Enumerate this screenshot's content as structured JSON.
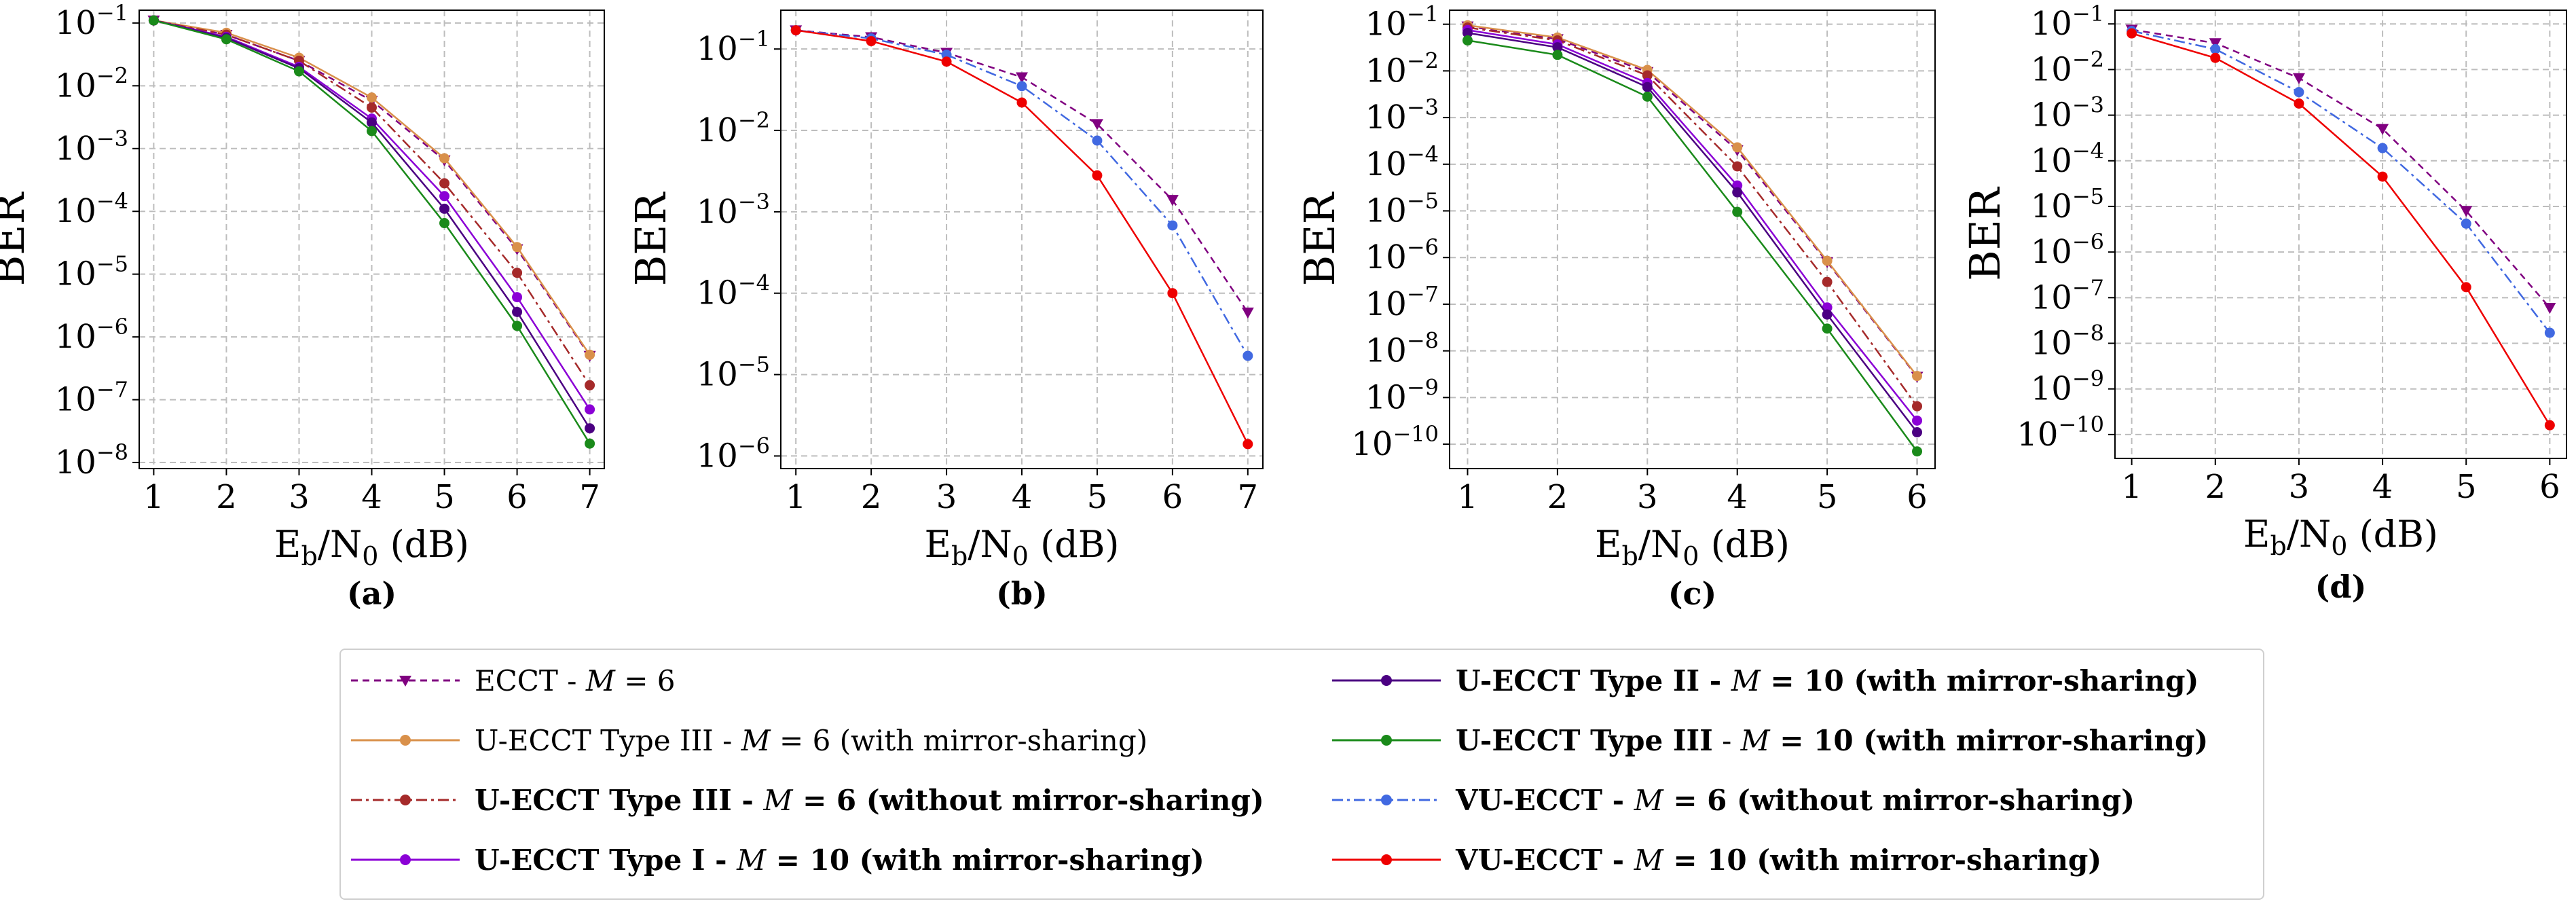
{
  "chart_data": [
    {
      "panel": "(a)",
      "type": "line",
      "xlabel": "E_b/N_0 (dB)",
      "ylabel": "BER",
      "yscale": "log",
      "x": [
        1,
        2,
        3,
        4,
        5,
        6,
        7
      ],
      "xlim": [
        0.8,
        7.2
      ],
      "ylim": [
        8e-09,
        0.16
      ],
      "yticks": [
        -8,
        -7,
        -6,
        -5,
        -4,
        -3,
        -2,
        -1
      ],
      "grid": true,
      "series": [
        {
          "key": "ecct6",
          "values": [
            0.11,
            0.065,
            0.025,
            0.0058,
            0.00065,
            2.5e-05,
            5e-07
          ]
        },
        {
          "key": "t3m6s",
          "values": [
            0.11,
            0.07,
            0.028,
            0.0065,
            0.0007,
            2.7e-05,
            5.2e-07
          ]
        },
        {
          "key": "t3m6n",
          "values": [
            0.11,
            0.065,
            0.025,
            0.0045,
            0.00028,
            1.05e-05,
            1.7e-07
          ]
        },
        {
          "key": "t1m10",
          "values": [
            0.11,
            0.06,
            0.02,
            0.003,
            0.000175,
            4.3e-06,
            7e-08
          ]
        },
        {
          "key": "t2m10",
          "values": [
            0.11,
            0.058,
            0.019,
            0.0026,
            0.00011,
            2.5e-06,
            3.5e-08
          ]
        },
        {
          "key": "t3m10",
          "values": [
            0.11,
            0.055,
            0.017,
            0.0019,
            6.5e-05,
            1.5e-06,
            2e-08
          ]
        }
      ]
    },
    {
      "panel": "(b)",
      "type": "line",
      "xlabel": "E_b/N_0 (dB)",
      "ylabel": "BER",
      "yscale": "log",
      "x": [
        1,
        2,
        3,
        4,
        5,
        6,
        7
      ],
      "xlim": [
        0.8,
        7.2
      ],
      "ylim": [
        7e-07,
        0.3
      ],
      "yticks": [
        -6,
        -5,
        -4,
        -3,
        -2,
        -1
      ],
      "grid": true,
      "series": [
        {
          "key": "ecct6",
          "values": [
            0.17,
            0.14,
            0.09,
            0.045,
            0.012,
            0.0014,
            5.8e-05
          ]
        },
        {
          "key": "vu6",
          "values": [
            0.17,
            0.135,
            0.085,
            0.035,
            0.0075,
            0.00068,
            1.7e-05
          ]
        },
        {
          "key": "vu10",
          "values": [
            0.17,
            0.125,
            0.07,
            0.022,
            0.0028,
            0.0001,
            1.4e-06
          ]
        }
      ]
    },
    {
      "panel": "(c)",
      "type": "line",
      "xlabel": "E_b/N_0 (dB)",
      "ylabel": "BER",
      "yscale": "log",
      "x": [
        1,
        2,
        3,
        4,
        5,
        6
      ],
      "xlim": [
        0.8,
        6.2
      ],
      "ylim": [
        3e-11,
        0.2
      ],
      "yticks": [
        -10,
        -9,
        -8,
        -7,
        -6,
        -5,
        -4,
        -3,
        -2,
        -1
      ],
      "grid": true,
      "series": [
        {
          "key": "ecct6",
          "values": [
            0.09,
            0.048,
            0.0095,
            0.0002,
            8e-07,
            2.8e-09
          ]
        },
        {
          "key": "t3m6s",
          "values": [
            0.095,
            0.052,
            0.0105,
            0.00023,
            8.5e-07,
            2.9e-09
          ]
        },
        {
          "key": "t3m6n",
          "values": [
            0.085,
            0.045,
            0.008,
            9e-05,
            3e-07,
            6.5e-10
          ]
        },
        {
          "key": "t1m10",
          "values": [
            0.075,
            0.037,
            0.0055,
            3.5e-05,
            8.5e-08,
            3.2e-10
          ]
        },
        {
          "key": "t2m10",
          "values": [
            0.065,
            0.032,
            0.0045,
            2.5e-05,
            6e-08,
            1.8e-10
          ]
        },
        {
          "key": "t3m10",
          "values": [
            0.045,
            0.022,
            0.0028,
            9.5e-06,
            3e-08,
            7e-11
          ]
        }
      ]
    },
    {
      "panel": "(d)",
      "type": "line",
      "xlabel": "E_b/N_0 (dB)",
      "ylabel": "BER",
      "yscale": "log",
      "x": [
        1,
        2,
        3,
        4,
        5,
        6
      ],
      "xlim": [
        0.8,
        6.2
      ],
      "ylim": [
        3e-11,
        0.2
      ],
      "yticks": [
        -10,
        -9,
        -8,
        -7,
        -6,
        -5,
        -4,
        -3,
        -2,
        -1
      ],
      "grid": true,
      "series": [
        {
          "key": "ecct6",
          "values": [
            0.075,
            0.038,
            0.0065,
            0.0005,
            8e-06,
            6e-08
          ]
        },
        {
          "key": "vu6",
          "values": [
            0.07,
            0.028,
            0.0032,
            0.00019,
            4.2e-06,
            1.7e-08
          ]
        },
        {
          "key": "vu10",
          "values": [
            0.062,
            0.018,
            0.0018,
            4.5e-05,
            1.7e-07,
            1.6e-10
          ]
        }
      ]
    }
  ],
  "panel_labels": [
    "(a)",
    "(b)",
    "(c)",
    "(d)"
  ],
  "axis_text": {
    "ylabel": "BER",
    "xlabel_main": "E",
    "xlabel_sub1": "b",
    "xlabel_mid": "/N",
    "xlabel_sub2": "0",
    "xlabel_unit": " (dB)"
  },
  "styles": {
    "ecct6": {
      "color": "#800080",
      "dash": "10,7",
      "marker": "tri-down"
    },
    "t3m6s": {
      "color": "#d9904a",
      "dash": "",
      "marker": "circle"
    },
    "t3m6n": {
      "color": "#a52a2a",
      "dash": "16,6,4,6",
      "marker": "circle"
    },
    "t1m10": {
      "color": "#8b00d6",
      "dash": "",
      "marker": "circle"
    },
    "t2m10": {
      "color": "#4b0082",
      "dash": "",
      "marker": "circle"
    },
    "t3m10": {
      "color": "#1a8a1a",
      "dash": "",
      "marker": "circle"
    },
    "vu6": {
      "color": "#4169e1",
      "dash": "16,6,4,6",
      "marker": "circle"
    },
    "vu10": {
      "color": "#ee0000",
      "dash": "",
      "marker": "circle"
    }
  },
  "legend": [
    {
      "key": "ecct6",
      "parts": [
        {
          "t": "ECCT - ",
          "b": false
        },
        {
          "t": "M",
          "i": true
        },
        {
          "t": " = 6",
          "b": false
        }
      ]
    },
    {
      "key": "t2m10",
      "parts": [
        {
          "t": "U-ECCT Type II - ",
          "b": true
        },
        {
          "t": "M",
          "i": true
        },
        {
          "t": " = 10 (with mirror-sharing)",
          "b": true
        }
      ]
    },
    {
      "key": "t3m6s",
      "parts": [
        {
          "t": "U-ECCT Type III - ",
          "b": false
        },
        {
          "t": "M",
          "i": true
        },
        {
          "t": " = 6 (with mirror-sharing)",
          "b": false
        }
      ]
    },
    {
      "key": "t3m10",
      "parts": [
        {
          "t": "U-ECCT Type III",
          "b": true
        },
        {
          "t": " - ",
          "b": false
        },
        {
          "t": "M",
          "i": true
        },
        {
          "t": " = 10 (with mirror-sharing)",
          "b": true
        }
      ]
    },
    {
      "key": "t3m6n",
      "parts": [
        {
          "t": "U-ECCT Type III - ",
          "b": true
        },
        {
          "t": "M",
          "i": true
        },
        {
          "t": " = 6 (without mirror-sharing)",
          "b": true
        }
      ]
    },
    {
      "key": "vu6",
      "parts": [
        {
          "t": "VU-ECCT - ",
          "b": true
        },
        {
          "t": "M",
          "i": true
        },
        {
          "t": " = 6 (without mirror-sharing)",
          "b": true
        }
      ]
    },
    {
      "key": "t1m10",
      "parts": [
        {
          "t": "U-ECCT Type I - ",
          "b": true
        },
        {
          "t": "M",
          "i": true
        },
        {
          "t": " = 10 (with mirror-sharing)",
          "b": true
        }
      ]
    },
    {
      "key": "vu10",
      "parts": [
        {
          "t": "VU-ECCT - ",
          "b": true
        },
        {
          "t": "M",
          "i": true
        },
        {
          "t": " = 10 (with mirror-sharing)",
          "b": true
        }
      ]
    }
  ]
}
